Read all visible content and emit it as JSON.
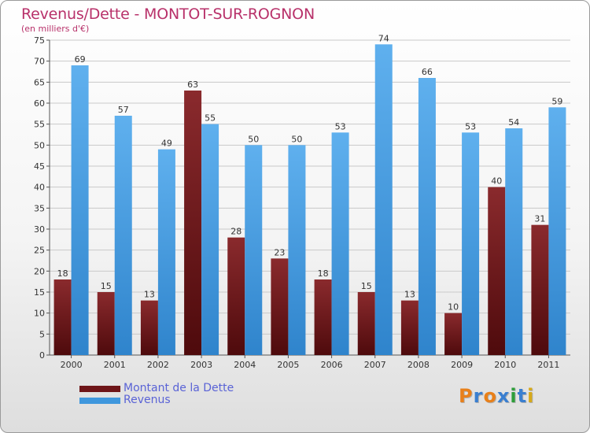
{
  "title": "Revenus/Dette - MONTOT-SUR-ROGNON",
  "subtitle": "(en milliers d'€)",
  "colors": {
    "debt": "#7a1f22",
    "revenue": "#4a9ee0",
    "title": "#b8316a",
    "legend_text": "#5a63d6"
  },
  "legend": [
    {
      "label": "Montant de la Dette",
      "color": "#6e1518"
    },
    {
      "label": "Revenus",
      "color": "#3f97dd"
    }
  ],
  "logo": {
    "text": "Proxiti"
  },
  "chart_data": {
    "type": "bar",
    "title": "Revenus/Dette - MONTOT-SUR-ROGNON",
    "subtitle": "(en milliers d'€)",
    "categories": [
      "2000",
      "2001",
      "2002",
      "2003",
      "2004",
      "2005",
      "2006",
      "2007",
      "2008",
      "2009",
      "2010",
      "2011"
    ],
    "series": [
      {
        "name": "Montant de la Dette",
        "values": [
          18,
          15,
          13,
          63,
          28,
          23,
          18,
          15,
          13,
          10,
          40,
          31
        ]
      },
      {
        "name": "Revenus",
        "values": [
          69,
          57,
          49,
          55,
          50,
          50,
          53,
          74,
          66,
          53,
          54,
          59
        ]
      }
    ],
    "ylim": [
      0,
      75
    ],
    "yticks": [
      0,
      5,
      10,
      15,
      20,
      25,
      30,
      35,
      40,
      45,
      50,
      55,
      60,
      65,
      70,
      75
    ],
    "grid": true,
    "legend_position": "bottom-left"
  }
}
